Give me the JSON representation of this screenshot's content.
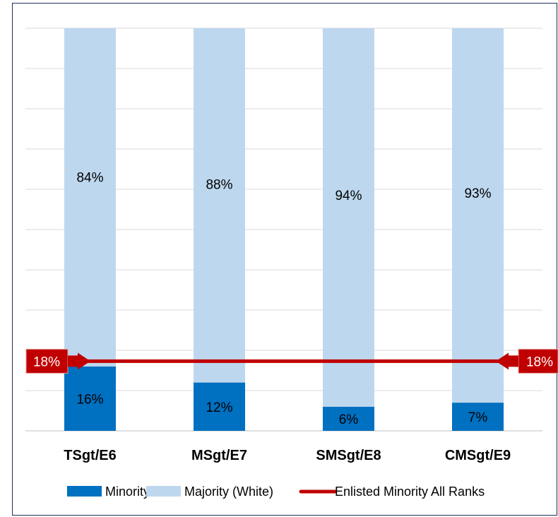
{
  "chart_data": {
    "type": "bar",
    "stacked": true,
    "categories": [
      "TSgt/E6",
      "MSgt/E7",
      "SMSgt/E8",
      "CMSgt/E9"
    ],
    "series": [
      {
        "name": "Minority",
        "values": [
          16,
          12,
          6,
          7
        ],
        "labels": [
          "16%",
          "12%",
          "6%",
          "7%"
        ],
        "color": "#0070c0"
      },
      {
        "name": "Majority (White)",
        "values": [
          84,
          88,
          94,
          93
        ],
        "labels": [
          "84%",
          "88%",
          "94%",
          "93%"
        ],
        "color": "#bdd7ee"
      }
    ],
    "reference_line": {
      "name": "Enlisted Minority All Ranks",
      "value": 18,
      "label": "18%",
      "color": "#c00000"
    },
    "ylim": [
      0,
      100
    ],
    "grid": true,
    "legend": "bottom",
    "title": "",
    "xlabel": "",
    "ylabel": ""
  }
}
